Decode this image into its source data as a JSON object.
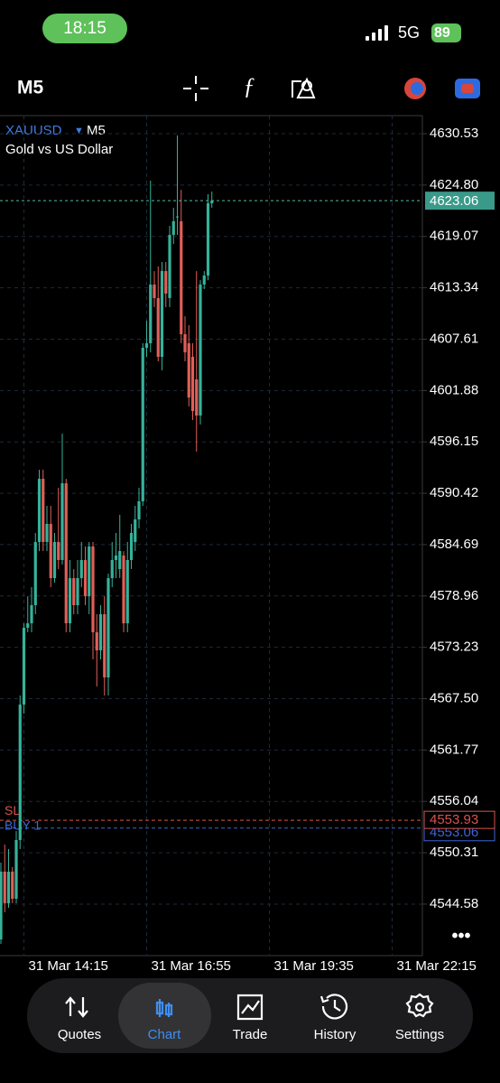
{
  "status_bar": {
    "time": "18:15",
    "network": "5G",
    "battery": 89
  },
  "toolbar": {
    "timeframe": "M5"
  },
  "chart_data": {
    "type": "candlestick",
    "symbol": "XAUUSD",
    "timeframe": "M5",
    "subtitle": "Gold vs US Dollar",
    "open": [
      4540.64,
      4548.2,
      4544.68,
      4548.2,
      4545.18,
      4551.73,
      4566.84,
      4575.41,
      4575.91,
      4577.93,
      4584.98,
      4592.03,
      4584.98,
      4587.0,
      4580.95,
      4584.98,
      4582.97,
      4591.53,
      4575.91,
      4580.95,
      4577.93,
      4580.95,
      4582.97,
      4578.93,
      4584.48,
      4574.91,
      4572.89,
      4576.92,
      4569.87,
      4580.95,
      4582.97,
      4581.96,
      4583.47,
      4575.91,
      4582.97,
      4584.98,
      4587.5,
      4589.52,
      4606.65,
      4607.15,
      4613.7,
      4612.19,
      4605.64,
      4615.21,
      4612.19,
      4619.24,
      4621.26,
      4620.76,
      4608.16,
      4607.15,
      4605.64,
      4603.12,
      4599.09,
      4613.7,
      4614.71,
      4622.77
    ],
    "high": [
      4549.21,
      4551.23,
      4550.72,
      4548.71,
      4552.74,
      4567.85,
      4575.91,
      4578.93,
      4579.94,
      4585.99,
      4593.04,
      4593.04,
      4589.01,
      4589.01,
      4585.99,
      4591.03,
      4597.07,
      4592.03,
      4582.97,
      4581.96,
      4582.97,
      4584.98,
      4584.48,
      4584.98,
      4584.98,
      4576.92,
      4577.93,
      4578.93,
      4581.45,
      4584.98,
      4585.99,
      4588.01,
      4583.97,
      4584.98,
      4587.0,
      4589.01,
      4591.03,
      4607.15,
      4609.67,
      4625.29,
      4615.21,
      4615.72,
      4616.22,
      4616.22,
      4620.25,
      4622.27,
      4630.33,
      4624.28,
      4610.17,
      4609.17,
      4607.15,
      4615.21,
      4614.2,
      4615.21,
      4623.78,
      4624.08
    ],
    "low": [
      4540.14,
      4543.67,
      4544.17,
      4544.68,
      4544.68,
      4550.72,
      4565.84,
      4574.91,
      4574.91,
      4576.92,
      4583.97,
      4583.97,
      4583.97,
      4579.94,
      4580.45,
      4581.96,
      4582.46,
      4574.91,
      4574.91,
      4576.92,
      4576.92,
      4579.94,
      4577.93,
      4576.92,
      4571.88,
      4568.86,
      4571.88,
      4567.85,
      4567.85,
      4579.94,
      4580.95,
      4580.95,
      4574.91,
      4574.91,
      4581.96,
      4583.97,
      4586.49,
      4589.01,
      4605.64,
      4606.14,
      4611.18,
      4605.14,
      4604.13,
      4611.18,
      4611.18,
      4618.24,
      4619.24,
      4607.15,
      4605.14,
      4600.1,
      4598.59,
      4595.06,
      4598.08,
      4613.2,
      4614.2,
      4622.27
    ],
    "close": [
      4548.2,
      4544.68,
      4548.2,
      4545.18,
      4551.73,
      4566.84,
      4575.41,
      4575.91,
      4577.93,
      4584.98,
      4592.03,
      4584.98,
      4587.0,
      4580.95,
      4584.98,
      4582.97,
      4591.53,
      4575.91,
      4580.95,
      4577.93,
      4580.95,
      4582.97,
      4578.93,
      4584.48,
      4574.91,
      4572.89,
      4576.92,
      4569.87,
      4580.95,
      4582.97,
      4583.47,
      4583.97,
      4575.91,
      4582.97,
      4585.99,
      4587.5,
      4589.52,
      4606.65,
      4607.15,
      4613.7,
      4612.19,
      4605.64,
      4615.21,
      4612.69,
      4619.24,
      4620.76,
      4621.3,
      4608.16,
      4606.14,
      4601.1,
      4599.59,
      4599.09,
      4613.7,
      4614.71,
      4622.77,
      4623.06
    ],
    "up_color": "#35b29a",
    "down_color": "#e05f58",
    "ylim": [
      4538.83,
      4632.55
    ],
    "yticks": [
      4630.53,
      {
        "value": 4624.8,
        "label": "4624.80"
      },
      4619.07,
      4613.34,
      4607.61,
      4601.88,
      4596.15,
      4590.42,
      4584.69,
      4578.96,
      4573.23,
      {
        "value": 4567.5,
        "label": "4567.50"
      },
      4561.77,
      4556.04,
      4550.31,
      4544.58
    ],
    "xticks": [
      "31 Mar 14:15",
      "31 Mar 16:55",
      "31 Mar 19:35",
      "31 Mar 22:15"
    ],
    "grid": true,
    "current_price": 4623.06,
    "levels": [
      {
        "name": "SL",
        "value": 4553.93,
        "color": "#d9534f"
      },
      {
        "name": "BUY 1",
        "value": 4553.06,
        "color": "#3b66d6"
      }
    ]
  },
  "nav": {
    "items": [
      "Quotes",
      "Chart",
      "Trade",
      "History",
      "Settings"
    ],
    "active": 1
  }
}
